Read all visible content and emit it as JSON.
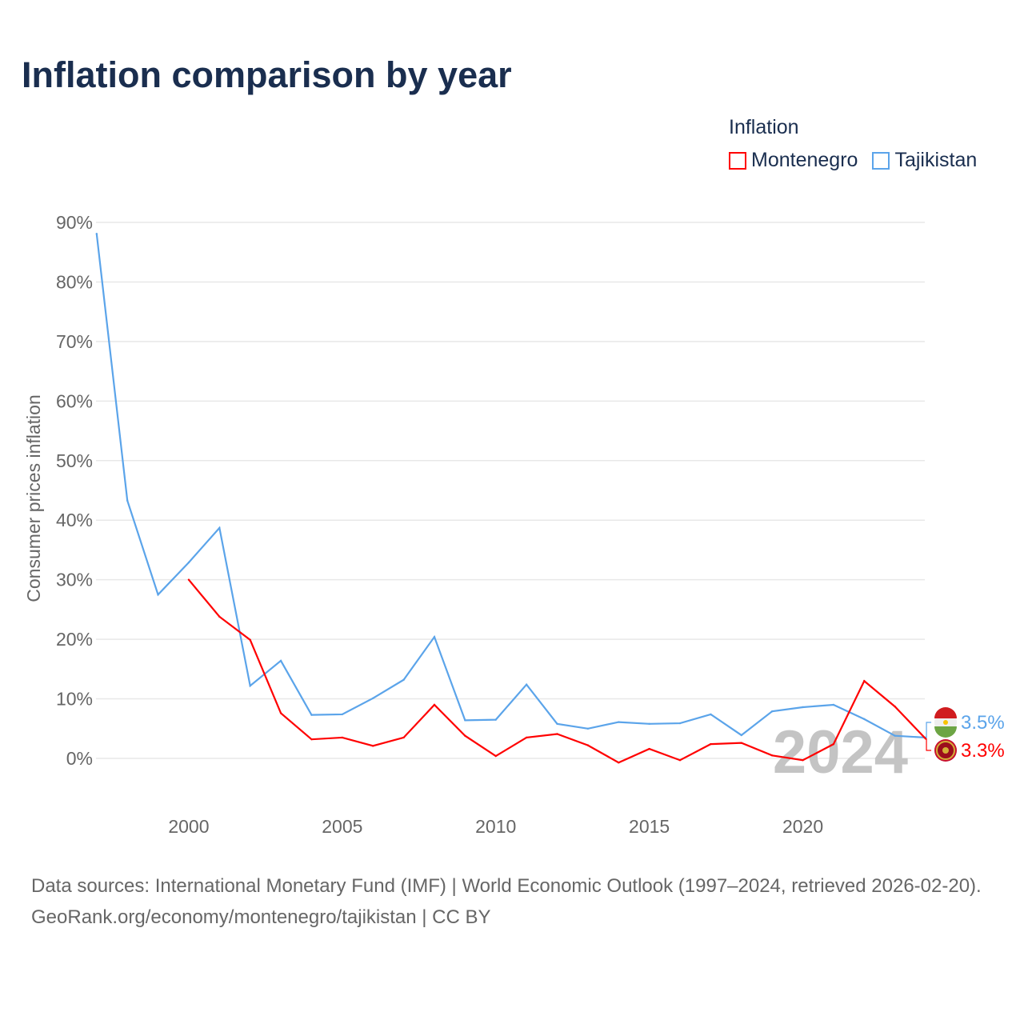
{
  "title": "Inflation comparison by year",
  "legend": {
    "title": "Inflation",
    "items": [
      {
        "name": "Montenegro",
        "color": "#ff0000"
      },
      {
        "name": "Tajikistan",
        "color": "#5ba4ea"
      }
    ]
  },
  "footer": {
    "line1": "Data sources: International Monetary Fund (IMF) | World Economic Outlook (1997–2024, retrieved 2026-02-20).",
    "line2": "GeoRank.org/economy/montenegro/tajikistan | CC BY"
  },
  "chart_data": {
    "type": "line",
    "title": "Inflation comparison by year",
    "ylabel": "Consumer prices inflation",
    "xlabel": "",
    "xlim": [
      1997,
      2024
    ],
    "ylim": [
      -8,
      90
    ],
    "xticks": [
      2000,
      2005,
      2010,
      2015,
      2020
    ],
    "yticks": [
      0,
      10,
      20,
      30,
      40,
      50,
      60,
      70,
      80,
      90
    ],
    "ytick_labels": [
      "0%",
      "10%",
      "20%",
      "30%",
      "40%",
      "50%",
      "60%",
      "70%",
      "80%",
      "90%"
    ],
    "watermark_year": "2024",
    "series": [
      {
        "name": "Tajikistan",
        "color": "#5ba4ea",
        "end_label": "3.5%",
        "x": [
          1997,
          1998,
          1999,
          2000,
          2001,
          2002,
          2003,
          2004,
          2005,
          2006,
          2007,
          2008,
          2009,
          2010,
          2011,
          2012,
          2013,
          2014,
          2015,
          2016,
          2017,
          2018,
          2019,
          2020,
          2021,
          2022,
          2023,
          2024
        ],
        "values": [
          88.1,
          43.3,
          27.5,
          32.9,
          38.7,
          12.2,
          16.4,
          7.3,
          7.4,
          10.1,
          13.2,
          20.4,
          6.4,
          6.5,
          12.4,
          5.8,
          5.0,
          6.1,
          5.8,
          5.9,
          7.4,
          3.9,
          7.9,
          8.6,
          9.0,
          6.6,
          3.8,
          3.5
        ]
      },
      {
        "name": "Montenegro",
        "color": "#ff0000",
        "end_label": "3.3%",
        "x": [
          2000,
          2001,
          2002,
          2003,
          2004,
          2005,
          2006,
          2007,
          2008,
          2009,
          2010,
          2011,
          2012,
          2013,
          2014,
          2015,
          2016,
          2017,
          2018,
          2019,
          2020,
          2021,
          2022,
          2023,
          2024
        ],
        "values": [
          30.0,
          23.8,
          19.9,
          7.6,
          3.2,
          3.5,
          2.1,
          3.5,
          9.0,
          3.8,
          0.4,
          3.5,
          4.1,
          2.2,
          -0.7,
          1.6,
          -0.3,
          2.4,
          2.6,
          0.5,
          -0.3,
          2.4,
          13.0,
          8.7,
          3.3
        ]
      }
    ]
  }
}
